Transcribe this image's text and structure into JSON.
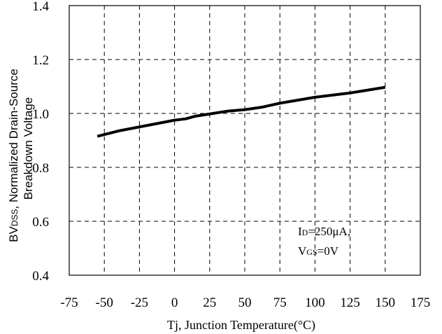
{
  "chart_data": {
    "type": "line",
    "title": "",
    "xlabel": "Tj, Junction Temperature(°C)",
    "ylabel_line1": "BV",
    "ylabel_line1_sub": "DSS",
    "ylabel_line1_rest": ", Normalized Drain-Source",
    "ylabel_line2": "Breakdown Voltage",
    "xlim": [
      -75,
      175
    ],
    "ylim": [
      0.4,
      1.4
    ],
    "x_ticks": [
      -75,
      -50,
      -25,
      0,
      25,
      50,
      75,
      100,
      125,
      150,
      175
    ],
    "x_tick_labels": [
      "-75",
      "-50",
      "-25",
      "0",
      "25",
      "50",
      "75",
      "100",
      "125",
      "150",
      "175"
    ],
    "y_ticks": [
      0.4,
      0.6,
      0.8,
      1.0,
      1.2,
      1.4
    ],
    "y_tick_labels": [
      "0.4",
      "0.6",
      "0.8",
      "1.0",
      "1.2",
      "1.4"
    ],
    "grid": true,
    "grid_style": "dashed",
    "series": [
      {
        "x": [
          -55,
          -40,
          -25,
          -10,
          0,
          8,
          15,
          25,
          37,
          50,
          62,
          75,
          100,
          125,
          150
        ],
        "y": [
          0.915,
          0.935,
          0.95,
          0.965,
          0.975,
          0.98,
          0.99,
          0.998,
          1.008,
          1.014,
          1.023,
          1.038,
          1.06,
          1.076,
          1.097
        ],
        "color": "#000000"
      }
    ],
    "annotation": {
      "line1_main": "I",
      "line1_sub": "D",
      "line1_rest": "=250μA,",
      "line2_main": "V",
      "line2_sub": "GS",
      "line2_rest": "=0V"
    }
  }
}
